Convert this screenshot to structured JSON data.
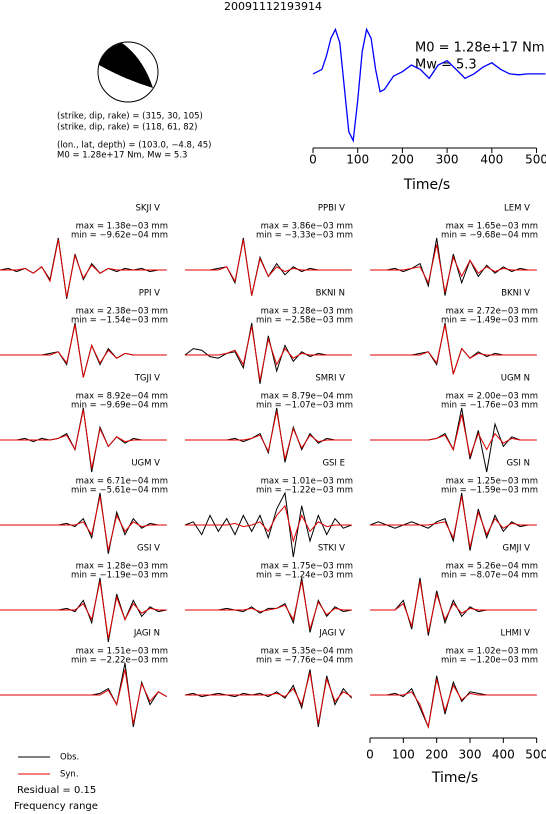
{
  "title": "20091112193914",
  "mechanism": {
    "lines": [
      "(strike, dip, rake) = (315, 30, 105)",
      "(strike, dip, rake) = (118, 61, 82)",
      "(lon., lat, depth) = (103.0, −4.8, 45)",
      "M0 = 1.28e+17 Nm, Mw = 5.3"
    ]
  },
  "chart_data": [
    {
      "type": "line",
      "color": "#0000ff",
      "xlabel": "Time/s",
      "annotations": [
        "M0 = 1.28e+17 Nm",
        "Mw = 5.3"
      ],
      "x": [
        0,
        20,
        30,
        40,
        50,
        60,
        70,
        80,
        90,
        100,
        110,
        120,
        130,
        140,
        150,
        160,
        180,
        200,
        220,
        240,
        260,
        280,
        300,
        320,
        340,
        360,
        380,
        400,
        420,
        440,
        460,
        480,
        500,
        520
      ],
      "values": [
        0,
        0.1,
        0.4,
        0.8,
        1.0,
        0.7,
        -0.3,
        -1.3,
        -1.5,
        -0.6,
        0.5,
        1.0,
        0.8,
        0.1,
        -0.4,
        -0.35,
        -0.05,
        0.05,
        0.2,
        0.1,
        -0.1,
        0.2,
        0.3,
        0.1,
        -0.1,
        0,
        0.15,
        0.25,
        0.1,
        0,
        -0.02,
        0,
        0,
        0
      ],
      "xlim": [
        0,
        510
      ],
      "ylim": [
        -1.6,
        1.1
      ],
      "xticks": [
        0,
        100,
        200,
        300,
        400,
        500
      ]
    },
    {
      "type": "waveforms",
      "xlabel": "Time/s",
      "xlim": [
        0,
        510
      ],
      "xticks": [
        0,
        100,
        200,
        300,
        400,
        500
      ],
      "t": [
        0,
        25,
        50,
        75,
        100,
        125,
        150,
        175,
        200,
        225,
        250,
        275,
        300,
        325,
        350,
        375,
        400,
        425,
        450,
        475,
        500
      ],
      "obs_color": "#000000",
      "syn_color": "#e00000",
      "legend": [
        "Obs.",
        "Syn."
      ],
      "residual": "Residual = 0.15",
      "note": "Frequency range",
      "panels": [
        {
          "station": "SKJI V",
          "max": "max = 1.38e−03 mm",
          "min": "min = −9.62e−04 mm",
          "obs": [
            0,
            0.05,
            -0.05,
            0.05,
            -0.1,
            0.1,
            -0.3,
            1,
            -0.9,
            0.5,
            -0.3,
            0.2,
            -0.1,
            0.05,
            -0.05,
            0.05,
            0,
            0.05,
            -0.05,
            0,
            0
          ],
          "syn": [
            0,
            0,
            0,
            0.05,
            -0.1,
            0.1,
            -0.35,
            0.95,
            -0.85,
            0.45,
            -0.25,
            0.15,
            -0.1,
            0.05,
            0,
            0,
            0,
            0,
            0,
            0,
            0
          ]
        },
        {
          "station": "PPBI V",
          "max": "max = 3.86e−03 mm",
          "min": "min = −3.33e−03 mm",
          "obs": [
            0,
            0,
            0,
            0,
            0.05,
            0.1,
            -0.4,
            1,
            -0.8,
            0.4,
            -0.2,
            0.2,
            -0.15,
            0.1,
            -0.05,
            0.05,
            0,
            0,
            0,
            0,
            0
          ],
          "syn": [
            0,
            0,
            0,
            0,
            0,
            0.1,
            -0.35,
            0.95,
            -0.8,
            0.35,
            -0.2,
            0.1,
            -0.05,
            0.05,
            0,
            0,
            0,
            0,
            0,
            0,
            0
          ]
        },
        {
          "station": "LEM V",
          "max": "max = 1.65e−03 mm",
          "min": "min = −9.68e−04 mm",
          "obs": [
            0,
            0,
            0,
            0.05,
            -0.05,
            0.05,
            0.2,
            -0.5,
            1,
            -0.8,
            0.5,
            -0.4,
            0.3,
            -0.2,
            0.15,
            -0.1,
            0.1,
            -0.05,
            0.05,
            0,
            0
          ],
          "syn": [
            0,
            0,
            0,
            0,
            0,
            0.05,
            0.1,
            -0.4,
            0.8,
            -0.7,
            0.4,
            -0.2,
            0.3,
            -0.1,
            0.1,
            -0.05,
            0.05,
            0,
            0,
            0,
            0
          ]
        },
        {
          "station": "PPI V",
          "max": "max = 2.38e−03 mm",
          "min": "min = −1.54e−03 mm",
          "obs": [
            0,
            0,
            0,
            0,
            0,
            0,
            0.05,
            0.1,
            -0.3,
            1,
            -0.7,
            0.3,
            -0.3,
            0.2,
            -0.1,
            0.05,
            0,
            0,
            0,
            0,
            0
          ],
          "syn": [
            0,
            0,
            0,
            0,
            0,
            0,
            0,
            0.1,
            -0.25,
            0.95,
            -0.7,
            0.3,
            -0.25,
            0.15,
            -0.1,
            0.05,
            0,
            0,
            0,
            0,
            0
          ]
        },
        {
          "station": "BKNI N",
          "max": "max = 3.28e−03 mm",
          "min": "min = −2.58e−03 mm",
          "obs": [
            0,
            0.2,
            0.15,
            -0.05,
            -0.1,
            0.05,
            0.1,
            -0.4,
            1,
            -0.9,
            0.6,
            -0.5,
            0.3,
            -0.2,
            0.1,
            -0.05,
            0.05,
            0,
            0,
            0,
            0
          ],
          "syn": [
            0,
            0,
            0,
            0,
            0,
            0.05,
            0.15,
            -0.3,
            0.9,
            -0.8,
            0.5,
            -0.3,
            0.2,
            -0.1,
            0.05,
            0,
            0,
            0,
            0,
            0,
            0
          ]
        },
        {
          "station": "BKNI V",
          "max": "max = 2.72e−03 mm",
          "min": "min = −1.49e−03 mm",
          "obs": [
            0,
            0,
            0,
            0,
            0,
            0,
            0.05,
            0.1,
            -0.3,
            1,
            -0.6,
            0.2,
            -0.1,
            0.1,
            -0.05,
            0.05,
            0,
            0,
            0,
            0,
            0
          ],
          "syn": [
            0,
            0,
            0,
            0,
            0,
            0,
            0,
            0.1,
            -0.25,
            0.95,
            -0.6,
            0.2,
            -0.1,
            0.05,
            0,
            0,
            0,
            0,
            0,
            0,
            0
          ]
        },
        {
          "station": "TGJI V",
          "max": "max = 8.92e−04 mm",
          "min": "min = −9.69e−04 mm",
          "obs": [
            0,
            0,
            0,
            0.05,
            -0.05,
            0.05,
            0,
            0.05,
            0.2,
            -0.3,
            1,
            -1,
            0.4,
            -0.2,
            0.1,
            -0.1,
            0.05,
            0,
            0,
            0,
            0
          ],
          "syn": [
            0,
            0,
            0,
            0,
            0,
            0,
            0,
            0.05,
            0.15,
            -0.3,
            0.95,
            -0.9,
            0.35,
            -0.2,
            0.1,
            -0.05,
            0,
            0,
            0,
            0,
            0
          ]
        },
        {
          "station": "SMRI V",
          "max": "max = 8.79e−04 mm",
          "min": "min = −1.07e−03 mm",
          "obs": [
            0,
            0,
            0,
            0,
            0,
            0,
            0.05,
            -0.05,
            0.05,
            0.2,
            -0.4,
            1,
            -0.7,
            0.4,
            -0.3,
            0.2,
            -0.1,
            0.05,
            0,
            0,
            0
          ],
          "syn": [
            0,
            0,
            0,
            0,
            0,
            0,
            0,
            0,
            0.05,
            0.15,
            -0.35,
            0.9,
            -0.6,
            0.35,
            -0.25,
            0.15,
            -0.05,
            0,
            0,
            0,
            0
          ]
        },
        {
          "station": "UGM N",
          "max": "max = 2.00e−03 mm",
          "min": "min = −1.76e−03 mm",
          "obs": [
            0,
            0,
            0,
            0,
            0,
            0,
            0,
            0,
            0.05,
            0.2,
            -0.3,
            1,
            -0.6,
            0.3,
            -1,
            0.5,
            -0.2,
            0.1,
            0,
            0,
            0
          ],
          "syn": [
            0,
            0,
            0,
            0,
            0,
            0,
            0,
            0,
            0.05,
            0.15,
            -0.3,
            0.8,
            -0.5,
            0.2,
            -0.3,
            0.2,
            -0.1,
            0.05,
            0,
            0,
            0
          ]
        },
        {
          "station": "UGM V",
          "max": "max = 6.71e−04 mm",
          "min": "min = −5.61e−04 mm",
          "obs": [
            0,
            0,
            0,
            0,
            0,
            0,
            0,
            0,
            0.05,
            -0.05,
            0.2,
            -0.4,
            1,
            -0.9,
            0.4,
            -0.3,
            0.2,
            -0.1,
            0.05,
            0,
            0
          ],
          "syn": [
            0,
            0,
            0,
            0,
            0,
            0,
            0,
            0,
            0,
            0,
            0.1,
            -0.3,
            0.9,
            -0.8,
            0.3,
            -0.2,
            0.1,
            -0.05,
            0,
            0,
            0
          ]
        },
        {
          "station": "GSI E",
          "max": "max = 1.01e−03 mm",
          "min": "min = −1.22e−03 mm",
          "obs": [
            0,
            0.1,
            -0.3,
            0.3,
            -0.2,
            0.2,
            -0.3,
            0.3,
            -0.2,
            0.3,
            -0.4,
            0.5,
            1,
            -1,
            0.6,
            -0.5,
            0.3,
            -0.3,
            0.2,
            -0.1,
            0
          ],
          "syn": [
            0,
            0,
            0,
            0,
            0,
            0,
            0.05,
            -0.05,
            0,
            0.1,
            -0.2,
            0.3,
            0.6,
            -0.5,
            0.3,
            -0.2,
            0.1,
            -0.05,
            0,
            0,
            0
          ]
        },
        {
          "station": "GSI N",
          "max": "max = 1.25e−03 mm",
          "min": "min = −1.59e−03 mm",
          "obs": [
            0,
            0.1,
            0,
            -0.1,
            0,
            0.1,
            0,
            -0.1,
            0.1,
            0.2,
            -0.5,
            1,
            -0.8,
            0.5,
            -0.4,
            0.3,
            -0.2,
            0.1,
            -0.05,
            0,
            0
          ],
          "syn": [
            0,
            0,
            0,
            0,
            0,
            0,
            0,
            0,
            0.05,
            0.1,
            -0.4,
            0.9,
            -0.7,
            0.4,
            -0.3,
            0.2,
            -0.1,
            0.05,
            0,
            0,
            0
          ]
        },
        {
          "station": "GSI V",
          "max": "max = 1.28e−03 mm",
          "min": "min = −1.19e−03 mm",
          "obs": [
            0,
            0,
            0,
            0,
            0,
            0,
            0,
            0,
            0.05,
            -0.05,
            0.3,
            -0.4,
            1,
            -1,
            0.5,
            -0.3,
            0.3,
            -0.2,
            0.1,
            -0.05,
            0
          ],
          "syn": [
            0,
            0,
            0,
            0,
            0,
            0,
            0,
            0,
            0,
            0,
            0.2,
            -0.3,
            0.9,
            -0.9,
            0.4,
            -0.3,
            0.2,
            -0.1,
            0.05,
            0,
            0
          ]
        },
        {
          "station": "STKI V",
          "max": "max = 1.75e−03 mm",
          "min": "min = −1.24e−03 mm",
          "obs": [
            0,
            0,
            0,
            0,
            0,
            0.05,
            0,
            -0.05,
            0.1,
            -0.1,
            0.05,
            0.05,
            0.2,
            -0.4,
            1,
            -0.7,
            0.3,
            -0.2,
            0.1,
            -0.05,
            0
          ],
          "syn": [
            0,
            0,
            0,
            0,
            0,
            0,
            0,
            0,
            0.05,
            -0.05,
            0,
            0.05,
            0.15,
            -0.3,
            0.9,
            -0.6,
            0.25,
            -0.15,
            0.05,
            0,
            0
          ]
        },
        {
          "station": "GMJI V",
          "max": "max = 5.26e−04 mm",
          "min": "min = −8.07e−04 mm",
          "obs": [
            0,
            0,
            0,
            0,
            0.3,
            -0.6,
            1,
            -0.8,
            0.6,
            -0.4,
            0.3,
            -0.2,
            0.1,
            -0.05,
            0,
            0,
            0,
            0,
            0,
            0,
            0
          ],
          "syn": [
            0,
            0,
            0,
            0,
            0.2,
            -0.5,
            0.9,
            -0.7,
            0.5,
            -0.3,
            0.2,
            -0.1,
            0.05,
            0,
            0,
            0,
            0,
            0,
            0,
            0,
            0
          ]
        },
        {
          "station": "JAGI N",
          "max": "max = 1.51e−03 mm",
          "min": "min = −2.22e−03 mm",
          "obs": [
            0,
            0,
            0,
            0,
            0,
            0,
            0,
            0,
            0,
            0,
            0,
            0,
            0.05,
            0.2,
            -0.3,
            1,
            -1,
            0.4,
            -0.3,
            0.1,
            -0.05
          ],
          "syn": [
            0,
            0,
            0,
            0,
            0,
            0,
            0,
            0,
            0,
            0,
            0,
            0,
            0,
            0.15,
            -0.3,
            0.8,
            -0.9,
            0.35,
            -0.2,
            0.1,
            -0.05
          ]
        },
        {
          "station": "JAGI V",
          "max": "max = 5.35e−04 mm",
          "min": "min = −7.76e−04 mm",
          "obs": [
            0,
            0.05,
            -0.05,
            0,
            0.05,
            0,
            -0.05,
            0.05,
            0,
            0.05,
            -0.05,
            0.1,
            -0.1,
            0.3,
            -0.4,
            0.8,
            -1,
            0.6,
            -0.3,
            0.2,
            -0.1
          ],
          "syn": [
            0,
            0,
            0,
            0,
            0,
            0,
            0,
            0,
            0,
            0,
            0,
            0.05,
            -0.05,
            0.2,
            -0.3,
            0.7,
            -0.9,
            0.5,
            -0.2,
            0.1,
            -0.05
          ]
        },
        {
          "station": "LHMI V",
          "max": "max = 1.02e−03 mm",
          "min": "min = −1.20e−03 mm",
          "obs": [
            0,
            0,
            0,
            0.05,
            -0.05,
            0.2,
            -0.4,
            -1,
            0.6,
            -0.6,
            0.4,
            -0.2,
            0.1,
            0.05,
            0,
            0,
            0,
            0,
            0,
            0,
            0
          ],
          "syn": [
            0,
            0,
            0,
            0,
            0,
            0.1,
            -0.3,
            -1,
            0.5,
            -0.5,
            0.3,
            -0.15,
            0.05,
            0,
            0,
            0,
            0,
            0,
            0,
            0,
            0
          ]
        }
      ]
    }
  ]
}
